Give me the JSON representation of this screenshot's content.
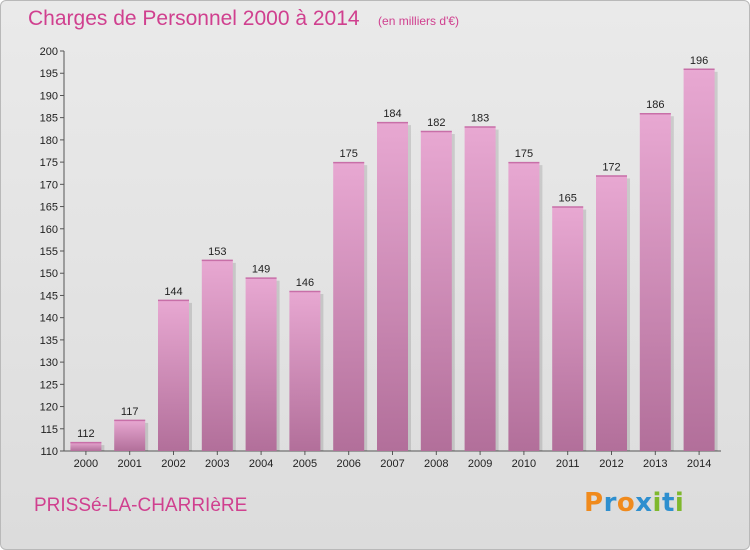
{
  "header": {
    "title": "Charges de Personnel 2000 à 2014",
    "subtitle": "(en milliers d'€)"
  },
  "footer": {
    "commune": "PRISSé-LA-CHARRIèRE",
    "logo_text": "Proxiti"
  },
  "colors": {
    "accent": "#d0408f",
    "bar_top": "#e8a8d2",
    "bar_bottom": "#b26f9a",
    "logo_letters": [
      "#f08a1c",
      "#2e8fcf",
      "#f08a1c",
      "#2e8fcf",
      "#7fb82d",
      "#2e8fcf",
      "#7fb82d"
    ]
  },
  "chart_data": {
    "type": "bar",
    "title": "Charges de Personnel 2000 à 2014",
    "subtitle": "(en milliers d'€)",
    "categories": [
      "2000",
      "2001",
      "2002",
      "2003",
      "2004",
      "2005",
      "2006",
      "2007",
      "2008",
      "2009",
      "2010",
      "2011",
      "2012",
      "2013",
      "2014"
    ],
    "values": [
      112,
      117,
      144,
      153,
      149,
      146,
      175,
      184,
      182,
      183,
      175,
      165,
      172,
      186,
      196
    ],
    "ylim": [
      110,
      200
    ],
    "yticks": [
      110,
      115,
      120,
      125,
      130,
      135,
      140,
      145,
      150,
      155,
      160,
      165,
      170,
      175,
      180,
      185,
      190,
      195,
      200
    ],
    "grid": false,
    "data_labels": true
  }
}
